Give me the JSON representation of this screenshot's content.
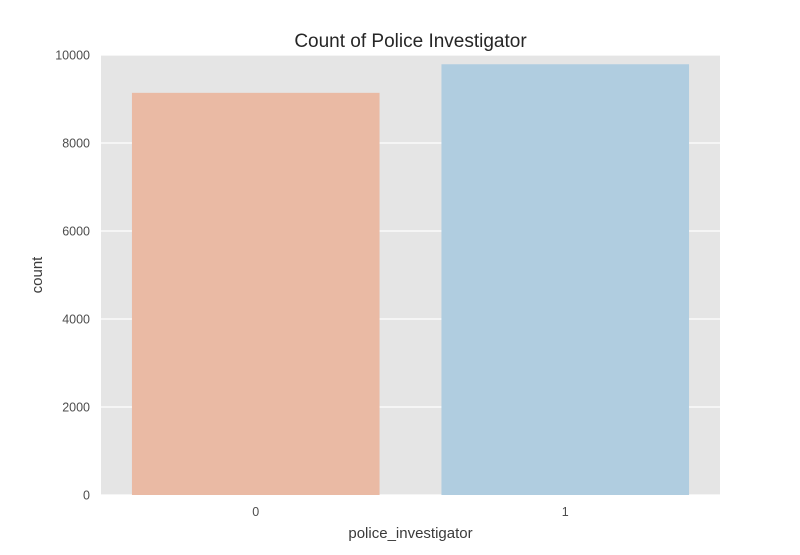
{
  "chart_data": {
    "type": "bar",
    "title": "Count of Police Investigator",
    "xlabel": "police_investigator",
    "ylabel": "count",
    "categories": [
      "0",
      "1"
    ],
    "values": [
      9140,
      9790
    ],
    "ylim": [
      0,
      10000
    ],
    "yticks": [
      0,
      2000,
      4000,
      6000,
      8000,
      10000
    ],
    "grid": true,
    "legend": "none",
    "colors": {
      "plot_background": "#e5e5e5",
      "grid": "#ffffff",
      "bars": [
        "#eabaa4",
        "#b0cde0"
      ]
    }
  }
}
